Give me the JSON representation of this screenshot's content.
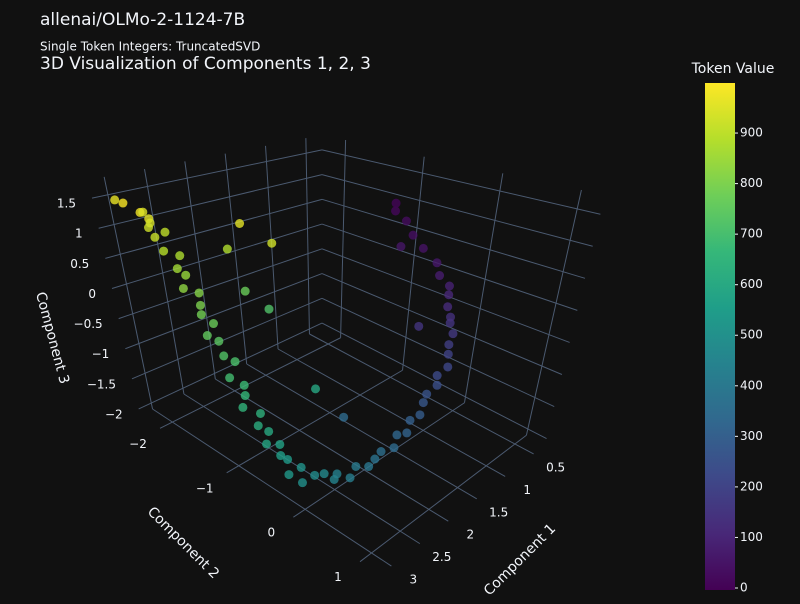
{
  "chart_data": {
    "type": "scatter3d",
    "heading": "allenai/OLMo-2-1124-7B",
    "subtitle": "Single Token Integers: TruncatedSVD",
    "title": "3D Visualization of Components 1, 2, 3",
    "xlabel": "Component 1",
    "ylabel": "Component 2",
    "zlabel": "Component 3",
    "colorbar_title": "Token Value",
    "xlim": [
      0.3,
      3.2
    ],
    "ylim": [
      -2.3,
      1.3
    ],
    "zlim": [
      -2.1,
      1.8
    ],
    "clim": [
      0,
      999
    ],
    "xticks": [
      0.5,
      1,
      1.5,
      2,
      2.5,
      3
    ],
    "yticks": [
      {
        "value": -2,
        "label": "−2"
      },
      {
        "value": -1,
        "label": "−1"
      },
      0,
      1
    ],
    "zticks": [
      {
        "value": -2,
        "label": "−2"
      },
      {
        "value": -1.5,
        "label": "−1.5"
      },
      {
        "value": -1,
        "label": "−1"
      },
      {
        "value": -0.5,
        "label": "−0.5"
      },
      0,
      0.5,
      1,
      1.5
    ],
    "cticks": [
      0,
      100,
      200,
      300,
      400,
      500,
      600,
      700,
      800,
      900
    ],
    "colorscale": [
      "#440154",
      "#482878",
      "#3e4989",
      "#31688e",
      "#26828e",
      "#1f9e89",
      "#35b779",
      "#6ece58",
      "#b5de2b",
      "#fde725"
    ],
    "grid": true,
    "x": [
      3.05,
      2.95,
      3.1,
      2.9,
      3.0,
      2.85,
      3.05,
      2.95,
      2.9,
      3.0,
      2.85,
      2.95,
      2.9,
      3.0,
      2.85,
      2.9,
      2.95,
      2.85,
      3.0,
      2.9,
      2.95,
      2.85,
      3.0,
      2.9,
      2.95,
      3.05,
      2.9,
      3.0,
      2.95,
      3.05,
      2.9,
      3.0,
      2.95,
      3.05,
      2.9,
      3.0,
      2.85,
      2.8,
      2.7,
      2.75,
      2.6,
      2.55,
      2.4,
      2.35,
      2.25,
      2.15,
      2.05,
      2.0,
      1.9,
      1.8,
      1.7,
      1.6,
      1.5,
      1.4,
      1.3,
      1.2,
      1.15,
      1.05,
      1.0,
      0.95,
      0.9,
      0.85,
      0.8,
      0.85,
      0.8,
      0.85,
      0.9,
      0.9,
      0.95,
      0.9,
      2.4,
      2.2,
      2.5,
      2.6,
      2.4,
      2.4,
      2.3,
      1.4,
      1.1
    ],
    "y": [
      -2.05,
      -1.95,
      -2.1,
      -1.9,
      -1.85,
      -1.95,
      -1.75,
      -1.8,
      -1.7,
      -1.65,
      -1.6,
      -1.55,
      -1.5,
      -1.45,
      -1.4,
      -1.35,
      -1.3,
      -1.25,
      -1.2,
      -1.15,
      -1.05,
      -1.0,
      -0.95,
      -0.85,
      -0.8,
      -0.75,
      -0.65,
      -0.6,
      -0.5,
      -0.45,
      -0.4,
      -0.3,
      -0.25,
      -0.15,
      -0.1,
      0.0,
      0.05,
      0.15,
      0.2,
      0.3,
      0.35,
      0.4,
      0.45,
      0.5,
      0.5,
      0.6,
      0.55,
      0.65,
      0.6,
      0.65,
      0.6,
      0.55,
      0.6,
      0.5,
      0.55,
      0.45,
      0.4,
      0.35,
      0.25,
      0.2,
      0.1,
      0.05,
      0.0,
      -0.1,
      -0.2,
      -0.35,
      -0.45,
      -0.55,
      -0.65,
      -0.7,
      -1.2,
      -1.0,
      -1.3,
      -1.0,
      -0.9,
      -0.3,
      0.0,
      0.2,
      -0.4
    ],
    "z": [
      1.45,
      1.3,
      1.5,
      1.2,
      1.35,
      1.1,
      1.15,
      0.95,
      1.05,
      0.8,
      0.7,
      0.55,
      0.45,
      0.3,
      0.2,
      0.05,
      -0.05,
      -0.2,
      -0.3,
      -0.4,
      -0.55,
      -0.65,
      -0.8,
      -0.9,
      -1.0,
      -1.1,
      -1.2,
      -1.3,
      -1.35,
      -1.45,
      -1.5,
      -1.55,
      -1.6,
      -1.7,
      -1.65,
      -1.75,
      -1.7,
      -1.65,
      -1.75,
      -1.6,
      -1.7,
      -1.55,
      -1.6,
      -1.5,
      -1.45,
      -1.4,
      -1.3,
      -1.25,
      -1.15,
      -1.1,
      -1.0,
      -0.95,
      -0.85,
      -0.8,
      -0.7,
      -0.6,
      -0.5,
      -0.4,
      -0.3,
      -0.25,
      -0.15,
      0.0,
      0.1,
      0.25,
      0.4,
      0.6,
      0.8,
      1.0,
      1.15,
      1.25,
      1.2,
      0.9,
      0.8,
      0.3,
      0.0,
      -0.9,
      -1.2,
      -0.2,
      0.7
    ],
    "values": [
      995,
      980,
      970,
      960,
      950,
      940,
      930,
      920,
      905,
      890,
      875,
      860,
      845,
      830,
      815,
      800,
      785,
      770,
      755,
      740,
      725,
      710,
      695,
      680,
      665,
      650,
      635,
      620,
      605,
      590,
      575,
      560,
      545,
      530,
      515,
      500,
      485,
      470,
      455,
      440,
      425,
      410,
      395,
      380,
      365,
      350,
      335,
      320,
      305,
      290,
      275,
      260,
      245,
      230,
      215,
      200,
      185,
      170,
      155,
      140,
      125,
      110,
      95,
      80,
      65,
      50,
      40,
      30,
      20,
      10,
      960,
      930,
      880,
      770,
      720,
      600,
      350,
      150,
      60
    ]
  }
}
